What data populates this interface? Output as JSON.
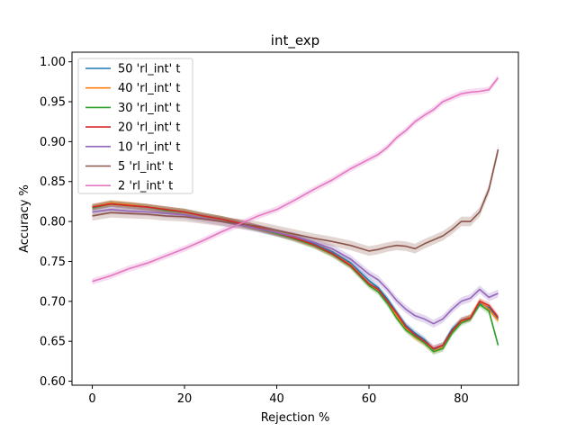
{
  "chart_data": {
    "type": "line",
    "title": "int_exp",
    "xlabel": "Rejection %",
    "ylabel": "Accuracy %",
    "xlim": [
      -4.4,
      92.4
    ],
    "ylim": [
      0.595,
      1.012
    ],
    "xticks": [
      0,
      20,
      40,
      60,
      80
    ],
    "xtick_labels": [
      "0",
      "20",
      "40",
      "60",
      "80"
    ],
    "yticks": [
      0.6,
      0.65,
      0.7,
      0.75,
      0.8,
      0.85,
      0.9,
      0.95,
      1.0
    ],
    "ytick_labels": [
      "0.60",
      "0.65",
      "0.70",
      "0.75",
      "0.80",
      "0.85",
      "0.90",
      "0.95",
      "1.00"
    ],
    "grid": false,
    "legend_position": "top-left",
    "series": [
      {
        "name": "50 'rl_int' t",
        "color": "#1f77b4",
        "band": 0.004,
        "x": [
          0,
          4,
          8,
          12,
          16,
          20,
          24,
          28,
          32,
          36,
          40,
          44,
          48,
          52,
          56,
          60,
          62,
          64,
          66,
          68,
          70,
          72,
          74,
          76,
          78,
          80,
          82,
          84,
          86,
          88
        ],
        "y": [
          0.818,
          0.822,
          0.82,
          0.818,
          0.815,
          0.812,
          0.807,
          0.803,
          0.798,
          0.792,
          0.786,
          0.78,
          0.772,
          0.762,
          0.748,
          0.726,
          0.717,
          0.703,
          0.686,
          0.67,
          0.66,
          0.652,
          0.64,
          0.645,
          0.665,
          0.676,
          0.68,
          0.698,
          0.692,
          0.678
        ]
      },
      {
        "name": "40 'rl_int' t",
        "color": "#ff7f0e",
        "band": 0.004,
        "x": [
          0,
          4,
          8,
          12,
          16,
          20,
          24,
          28,
          32,
          36,
          40,
          44,
          48,
          52,
          56,
          60,
          62,
          64,
          66,
          68,
          70,
          72,
          74,
          76,
          78,
          80,
          82,
          84,
          86,
          88
        ],
        "y": [
          0.818,
          0.823,
          0.821,
          0.818,
          0.815,
          0.812,
          0.807,
          0.803,
          0.798,
          0.792,
          0.786,
          0.779,
          0.771,
          0.76,
          0.746,
          0.722,
          0.714,
          0.7,
          0.682,
          0.666,
          0.655,
          0.648,
          0.638,
          0.642,
          0.662,
          0.675,
          0.68,
          0.7,
          0.69,
          0.676
        ]
      },
      {
        "name": "30 'rl_int' t",
        "color": "#2ca02c",
        "band": 0.004,
        "x": [
          0,
          4,
          8,
          12,
          16,
          20,
          24,
          28,
          32,
          36,
          40,
          44,
          48,
          52,
          56,
          60,
          62,
          64,
          66,
          68,
          70,
          72,
          74,
          76,
          78,
          80,
          82,
          84,
          86,
          88
        ],
        "y": [
          0.817,
          0.822,
          0.82,
          0.818,
          0.814,
          0.812,
          0.807,
          0.803,
          0.797,
          0.791,
          0.785,
          0.778,
          0.77,
          0.759,
          0.744,
          0.72,
          0.712,
          0.697,
          0.679,
          0.664,
          0.656,
          0.648,
          0.637,
          0.641,
          0.66,
          0.673,
          0.678,
          0.696,
          0.688,
          0.645
        ]
      },
      {
        "name": "20 'rl_int' t",
        "color": "#d62728",
        "band": 0.004,
        "x": [
          0,
          4,
          8,
          12,
          16,
          20,
          24,
          28,
          32,
          36,
          40,
          44,
          48,
          52,
          56,
          60,
          62,
          64,
          66,
          68,
          70,
          72,
          74,
          76,
          78,
          80,
          82,
          84,
          86,
          88
        ],
        "y": [
          0.818,
          0.822,
          0.82,
          0.818,
          0.815,
          0.812,
          0.807,
          0.803,
          0.798,
          0.792,
          0.786,
          0.779,
          0.771,
          0.76,
          0.745,
          0.722,
          0.715,
          0.7,
          0.685,
          0.668,
          0.658,
          0.65,
          0.641,
          0.645,
          0.663,
          0.676,
          0.679,
          0.7,
          0.695,
          0.68
        ]
      },
      {
        "name": "10 'rl_int' t",
        "color": "#9467bd",
        "band": 0.005,
        "x": [
          0,
          4,
          8,
          12,
          16,
          20,
          24,
          28,
          32,
          36,
          40,
          44,
          48,
          52,
          56,
          60,
          62,
          64,
          66,
          68,
          70,
          72,
          74,
          76,
          78,
          80,
          82,
          84,
          86,
          88
        ],
        "y": [
          0.812,
          0.815,
          0.813,
          0.812,
          0.81,
          0.808,
          0.804,
          0.8,
          0.796,
          0.791,
          0.786,
          0.781,
          0.774,
          0.766,
          0.753,
          0.734,
          0.727,
          0.715,
          0.701,
          0.69,
          0.682,
          0.678,
          0.672,
          0.678,
          0.69,
          0.7,
          0.704,
          0.715,
          0.705,
          0.71
        ]
      },
      {
        "name": "5 'rl_int' t",
        "color": "#8c564b",
        "band": 0.006,
        "x": [
          0,
          4,
          8,
          12,
          16,
          20,
          24,
          28,
          32,
          36,
          40,
          44,
          48,
          52,
          56,
          60,
          62,
          64,
          66,
          68,
          70,
          72,
          74,
          76,
          78,
          80,
          82,
          84,
          86,
          88
        ],
        "y": [
          0.807,
          0.811,
          0.81,
          0.809,
          0.807,
          0.806,
          0.803,
          0.8,
          0.797,
          0.794,
          0.789,
          0.784,
          0.779,
          0.775,
          0.77,
          0.763,
          0.765,
          0.768,
          0.77,
          0.769,
          0.766,
          0.772,
          0.777,
          0.782,
          0.79,
          0.8,
          0.8,
          0.812,
          0.84,
          0.89
        ]
      },
      {
        "name": "2 'rl_int' t",
        "color": "#e377c2",
        "band": 0.004,
        "x": [
          0,
          4,
          8,
          12,
          16,
          20,
          24,
          28,
          32,
          36,
          40,
          44,
          48,
          52,
          56,
          60,
          62,
          64,
          66,
          68,
          70,
          72,
          74,
          76,
          78,
          80,
          82,
          84,
          86,
          88
        ],
        "y": [
          0.725,
          0.732,
          0.741,
          0.748,
          0.757,
          0.766,
          0.776,
          0.787,
          0.797,
          0.807,
          0.815,
          0.827,
          0.84,
          0.852,
          0.866,
          0.878,
          0.884,
          0.893,
          0.905,
          0.914,
          0.925,
          0.933,
          0.94,
          0.95,
          0.955,
          0.96,
          0.962,
          0.963,
          0.965,
          0.98
        ]
      }
    ]
  }
}
